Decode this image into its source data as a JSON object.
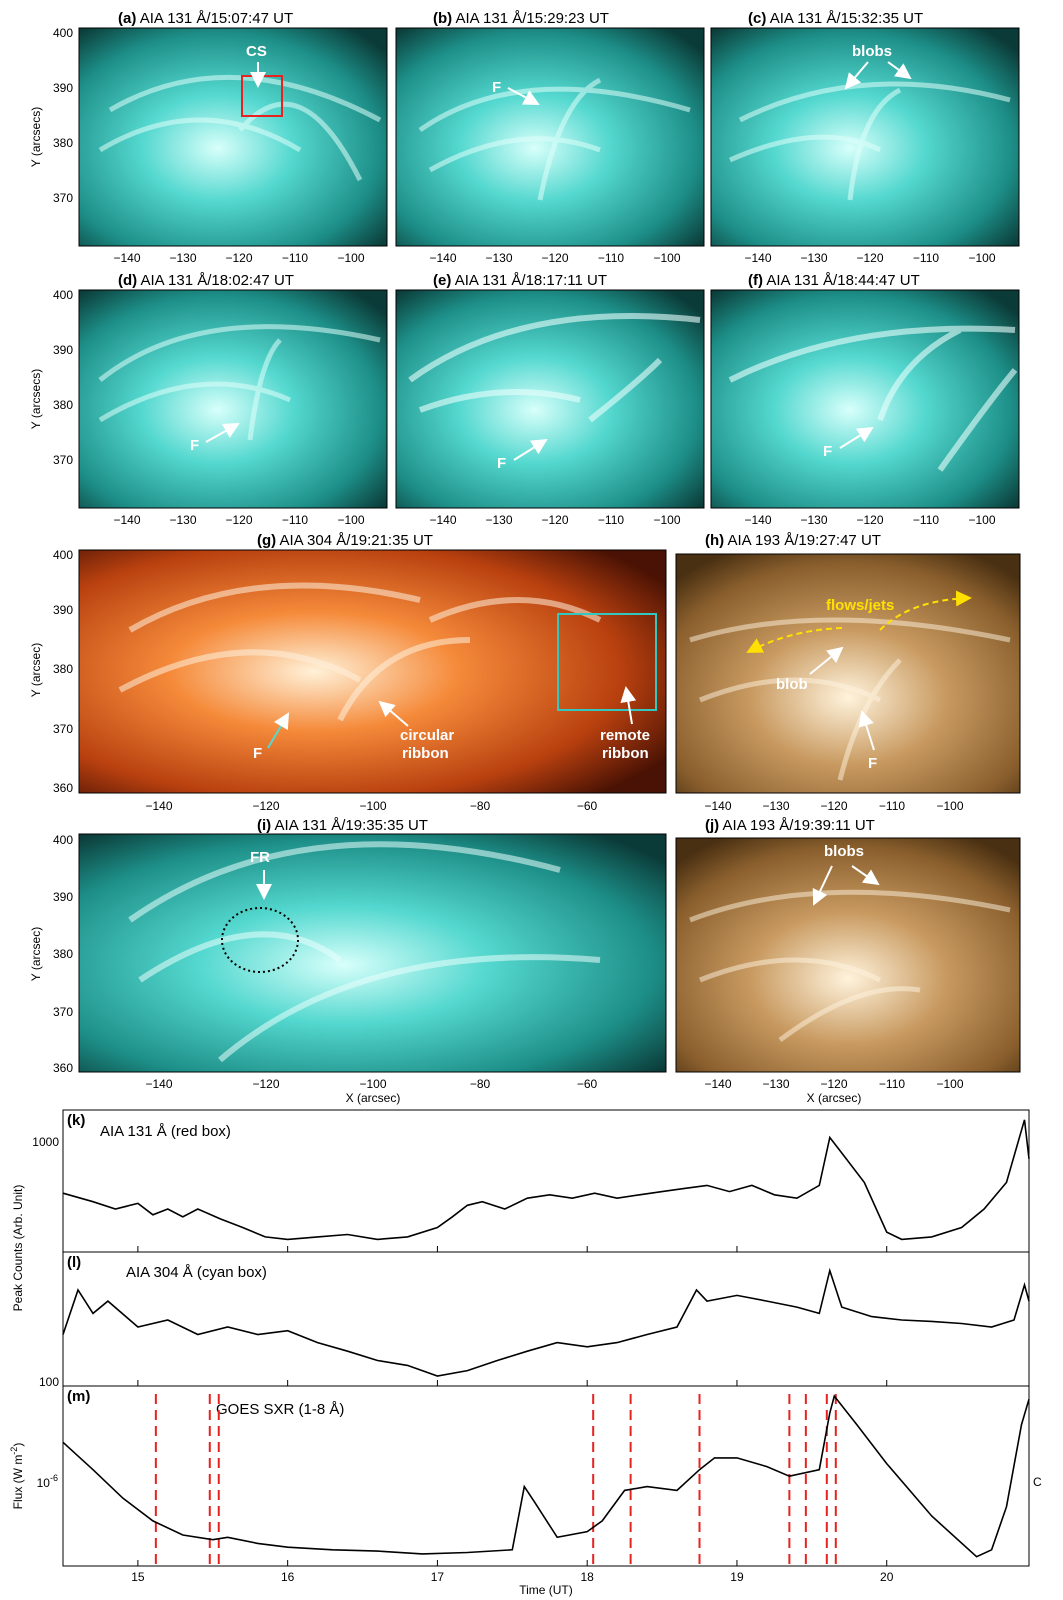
{
  "figure": {
    "panels": [
      {
        "letter": "(a)",
        "title": "AIA 131 Å/15:07:47 UT",
        "annotations": [
          "CS"
        ],
        "ylabel": "Y (arcsecs)"
      },
      {
        "letter": "(b)",
        "title": "AIA 131 Å/15:29:23 UT",
        "annotations": [
          "F"
        ]
      },
      {
        "letter": "(c)",
        "title": "AIA 131 Å/15:32:35 UT",
        "annotations": [
          "blobs"
        ]
      },
      {
        "letter": "(d)",
        "title": "AIA 131 Å/18:02:47 UT",
        "annotations": [
          "F"
        ],
        "ylabel": "Y (arcsecs)"
      },
      {
        "letter": "(e)",
        "title": "AIA 131 Å/18:17:11 UT",
        "annotations": [
          "F"
        ]
      },
      {
        "letter": "(f)",
        "title": "AIA 131 Å/18:44:47 UT",
        "annotations": [
          "F"
        ]
      },
      {
        "letter": "(g)",
        "title": "AIA 304 Å/19:21:35 UT",
        "annotations": [
          "F",
          "circular",
          "ribbon",
          "remote",
          "ribbon"
        ],
        "ylabel": "Y (arcsec)"
      },
      {
        "letter": "(h)",
        "title": "AIA 193 Å/19:27:47 UT",
        "annotations": [
          "flows/jets",
          "blob",
          "F"
        ]
      },
      {
        "letter": "(i)",
        "title": "AIA 131 Å/19:35:35 UT",
        "annotations": [
          "FR"
        ],
        "ylabel": "Y (arcsec)",
        "xlabel": "X (arcsec)"
      },
      {
        "letter": "(j)",
        "title": "AIA 193 Å/19:39:11 UT",
        "annotations": [
          "blobs"
        ],
        "xlabel": "X (arcsec)"
      }
    ],
    "ticks_small_x": [
      "−140",
      "−130",
      "−120",
      "−110",
      "−100"
    ],
    "ticks_small_y": [
      "400",
      "390",
      "380",
      "370"
    ],
    "ticks_wide_x": [
      "−140",
      "−120",
      "−100",
      "−80",
      "−60"
    ],
    "ticks_wide_y": [
      "400",
      "390",
      "380",
      "370",
      "360"
    ],
    "colors": {
      "aia131": "#33c7c0",
      "aia304": "#d9591c",
      "aia193": "#b78a52",
      "events": "#e8221f",
      "yellow": "#ffe000"
    }
  },
  "chart_data": [
    {
      "type": "line",
      "panel": "(k)",
      "title": "AIA 131 Å (red box)",
      "ylabel": "Peak Counts (Arb. Unit)",
      "ytick_labels": [
        "1000"
      ],
      "xlim": [
        14.5,
        20.95
      ],
      "yscale": "log",
      "series": [
        {
          "x": [
            14.5,
            14.7,
            14.85,
            15.0,
            15.1,
            15.2,
            15.3,
            15.4,
            15.55,
            15.7,
            15.85,
            16.0,
            16.2,
            16.4,
            16.6,
            16.8,
            17.0,
            17.1,
            17.2,
            17.3,
            17.45,
            17.6,
            17.75,
            17.9,
            18.05,
            18.2,
            18.35,
            18.5,
            18.65,
            18.8,
            18.95,
            19.1,
            19.25,
            19.4,
            19.55,
            19.62,
            19.7,
            19.85,
            20.0,
            20.1,
            20.3,
            20.5,
            20.65,
            20.8,
            20.92,
            20.95
          ],
          "y": [
            650,
            600,
            560,
            590,
            530,
            560,
            520,
            560,
            510,
            470,
            430,
            420,
            430,
            440,
            420,
            430,
            470,
            520,
            580,
            600,
            560,
            620,
            640,
            620,
            650,
            620,
            640,
            660,
            680,
            700,
            660,
            700,
            640,
            620,
            700,
            1100,
            950,
            720,
            450,
            420,
            430,
            470,
            560,
            720,
            1300,
            900
          ]
        }
      ]
    },
    {
      "type": "line",
      "panel": "(l)",
      "title": "AIA 304 Å (cyan box)",
      "ytick_labels": [
        "100"
      ],
      "xlim": [
        14.5,
        20.95
      ],
      "yscale": "log",
      "series": [
        {
          "x": [
            14.5,
            14.6,
            14.7,
            14.8,
            15.0,
            15.2,
            15.4,
            15.6,
            15.8,
            16.0,
            16.2,
            16.4,
            16.6,
            16.8,
            17.0,
            17.2,
            17.4,
            17.6,
            17.8,
            18.0,
            18.2,
            18.4,
            18.6,
            18.73,
            18.8,
            19.0,
            19.2,
            19.4,
            19.55,
            19.62,
            19.7,
            19.9,
            20.1,
            20.3,
            20.5,
            20.7,
            20.85,
            20.92,
            20.95
          ],
          "y": [
            150,
            220,
            180,
            200,
            160,
            170,
            150,
            160,
            150,
            155,
            140,
            130,
            120,
            115,
            105,
            110,
            120,
            130,
            140,
            135,
            140,
            150,
            160,
            220,
            200,
            210,
            200,
            190,
            180,
            260,
            190,
            175,
            170,
            168,
            165,
            160,
            170,
            230,
            200
          ]
        }
      ]
    },
    {
      "type": "line",
      "panel": "(m)",
      "title": "GOES SXR (1-8 Å)",
      "xlabel": "Time (UT)",
      "ylabel": "Flux (W m",
      "ylabel_superscript": "-2",
      "ylabel_close": ")",
      "ytick_base": "10",
      "ytick_exponent": "-6",
      "right_label": "C",
      "x_ticks": [
        "15",
        "16",
        "17",
        "18",
        "19",
        "20"
      ],
      "xlim": [
        14.5,
        20.95
      ],
      "yscale": "log",
      "series": [
        {
          "x": [
            14.5,
            14.7,
            14.9,
            15.1,
            15.3,
            15.5,
            15.6,
            15.8,
            16.0,
            16.3,
            16.6,
            16.9,
            17.2,
            17.5,
            17.58,
            17.65,
            17.8,
            18.0,
            18.1,
            18.25,
            18.4,
            18.6,
            18.75,
            18.85,
            19.0,
            19.2,
            19.35,
            19.55,
            19.62,
            19.65,
            19.8,
            20.0,
            20.3,
            20.6,
            20.7,
            20.8,
            20.9,
            20.95
          ],
          "y": [
            2.2,
            1.7,
            1.3,
            1.05,
            0.92,
            0.88,
            0.9,
            0.85,
            0.82,
            0.8,
            0.79,
            0.77,
            0.78,
            0.8,
            1.45,
            1.25,
            0.9,
            0.95,
            1.05,
            1.4,
            1.45,
            1.4,
            1.7,
            1.9,
            1.9,
            1.75,
            1.6,
            1.7,
            2.9,
            3.4,
            2.6,
            1.8,
            1.1,
            0.75,
            0.8,
            1.2,
            2.6,
            3.3
          ]
        }
      ],
      "event_times": [
        15.12,
        15.48,
        15.54,
        18.04,
        18.29,
        18.75,
        19.35,
        19.46,
        19.6,
        19.66
      ]
    }
  ]
}
